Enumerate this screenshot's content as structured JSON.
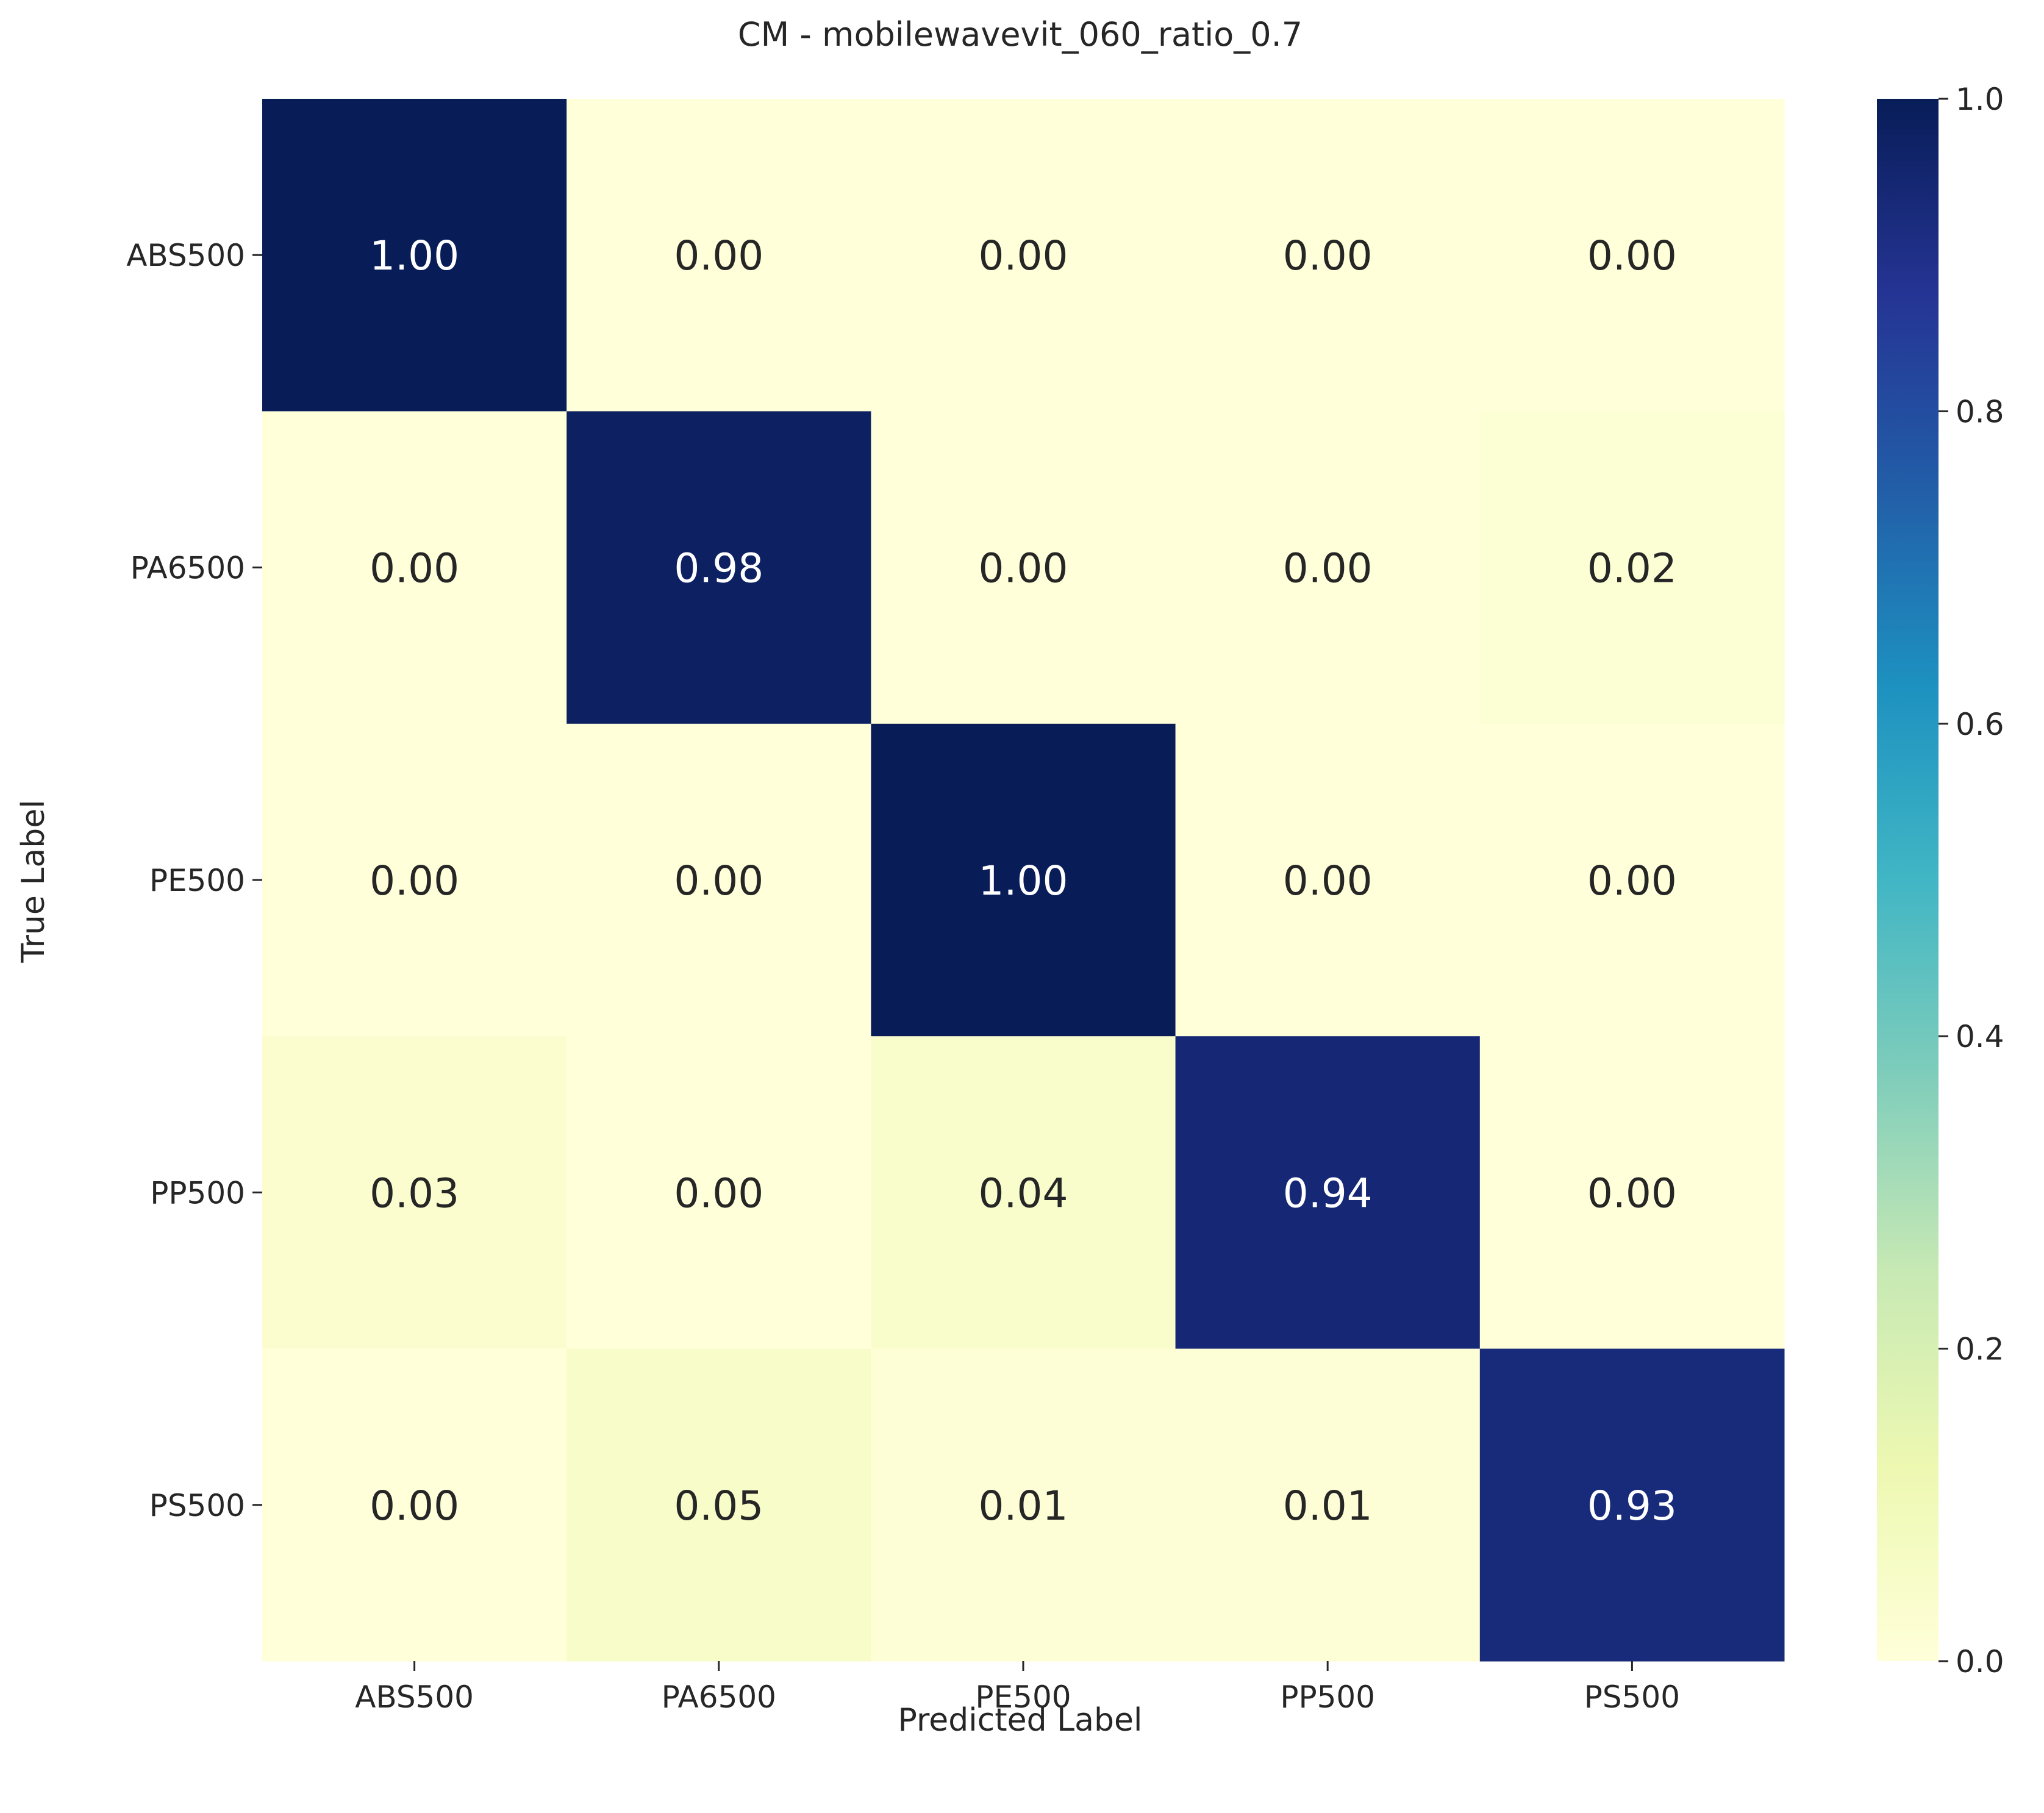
{
  "chart_data": {
    "type": "heatmap",
    "title": "CM - mobilewavevit_060_ratio_0.7",
    "xlabel": "Predicted Label",
    "ylabel": "True Label",
    "x_categories": [
      "ABS500",
      "PA6500",
      "PE500",
      "PP500",
      "PS500"
    ],
    "y_categories": [
      "ABS500",
      "PA6500",
      "PE500",
      "PP500",
      "PS500"
    ],
    "values": [
      [
        1.0,
        0.0,
        0.0,
        0.0,
        0.0
      ],
      [
        0.0,
        0.98,
        0.0,
        0.0,
        0.02
      ],
      [
        0.0,
        0.0,
        1.0,
        0.0,
        0.0
      ],
      [
        0.03,
        0.0,
        0.04,
        0.94,
        0.0
      ],
      [
        0.0,
        0.05,
        0.01,
        0.01,
        0.93
      ]
    ],
    "value_format": "0.00",
    "colormap": "YlGnBu",
    "vmin": 0.0,
    "vmax": 1.0,
    "colorbar_ticks": [
      "0.0",
      "0.2",
      "0.4",
      "0.6",
      "0.8",
      "1.0"
    ],
    "colorbar_tick_values": [
      0.0,
      0.2,
      0.4,
      0.6,
      0.8,
      1.0
    ]
  }
}
